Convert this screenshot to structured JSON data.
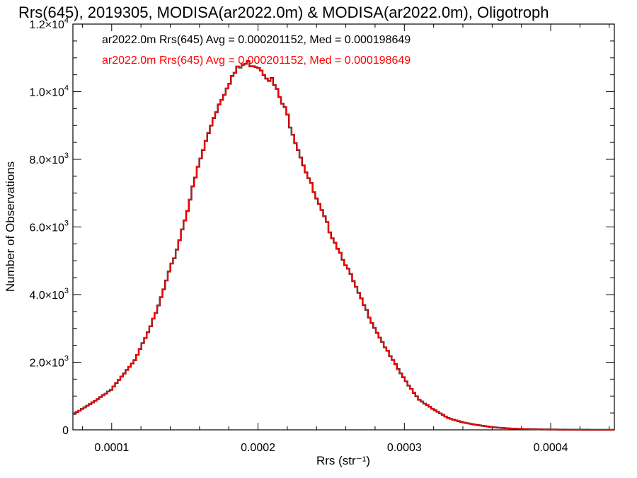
{
  "chart_data": {
    "type": "line",
    "title": "Rrs(645), 2019305, MODISA(ar2022.0m) & MODISA(ar2022.0m), Oligotroph",
    "xlabel": "Rrs (str⁻¹)",
    "ylabel": "Number of Observations",
    "xlim": [
      7.35e-05,
      0.0004435
    ],
    "ylim": [
      0,
      12000
    ],
    "x_ticks": [
      {
        "value": 0.0001,
        "label": "0.0001"
      },
      {
        "value": 0.0002,
        "label": "0.0002"
      },
      {
        "value": 0.0003,
        "label": "0.0003"
      },
      {
        "value": 0.0004,
        "label": "0.0004"
      }
    ],
    "y_ticks": [
      {
        "value": 0,
        "mant": "0",
        "exp": ""
      },
      {
        "value": 2000,
        "mant": "2.0×10",
        "exp": "3"
      },
      {
        "value": 4000,
        "mant": "4.0×10",
        "exp": "3"
      },
      {
        "value": 6000,
        "mant": "6.0×10",
        "exp": "3"
      },
      {
        "value": 8000,
        "mant": "8.0×10",
        "exp": "3"
      },
      {
        "value": 10000,
        "mant": "1.0×10",
        "exp": "4"
      },
      {
        "value": 12000,
        "mant": "1.2×10",
        "exp": "4"
      }
    ],
    "grid": false,
    "legend_position": "top-left",
    "annotations": [
      {
        "text": "ar2022.0m Rrs(645) Avg = 0.000201152, Med = 0.000198649",
        "color": "#000000"
      },
      {
        "text": "ar2022.0m Rrs(645) Avg = 0.000201152, Med = 0.000198649",
        "color": "#ff0000"
      }
    ],
    "series": [
      {
        "color": "#000000",
        "x": [
          7.35e-05,
          8.5e-05,
          0.0001,
          0.000115,
          0.00013,
          0.000145,
          0.00016,
          0.00017,
          0.00018,
          0.000185,
          0.00019,
          0.000195,
          0.0002,
          0.00021,
          0.00022,
          0.00023,
          0.00024,
          0.00025,
          0.00026,
          0.00027,
          0.00028,
          0.00029,
          0.0003,
          0.00031,
          0.00032,
          0.00033,
          0.00034,
          0.00035,
          0.00036,
          0.00037,
          0.00038,
          0.00039,
          0.0004,
          0.00041,
          0.00042,
          0.00043,
          0.0004435
        ],
        "y": [
          450,
          750,
          1200,
          2000,
          3400,
          5400,
          7900,
          9300,
          10300,
          10600,
          10800,
          10850,
          10800,
          10300,
          9300,
          8000,
          6800,
          5800,
          4900,
          3900,
          3000,
          2200,
          1500,
          900,
          600,
          350,
          220,
          140,
          80,
          45,
          25,
          15,
          10,
          5,
          3,
          2,
          1
        ]
      },
      {
        "color": "#ff0000",
        "x": [
          7.35e-05,
          8.5e-05,
          0.0001,
          0.000115,
          0.00013,
          0.000145,
          0.00016,
          0.00017,
          0.00018,
          0.000185,
          0.00019,
          0.000195,
          0.0002,
          0.00021,
          0.00022,
          0.00023,
          0.00024,
          0.00025,
          0.00026,
          0.00027,
          0.00028,
          0.00029,
          0.0003,
          0.00031,
          0.00032,
          0.00033,
          0.00034,
          0.00035,
          0.00036,
          0.00037,
          0.00038,
          0.00039,
          0.0004,
          0.00041,
          0.00042,
          0.00043,
          0.0004435
        ],
        "y": [
          450,
          750,
          1200,
          2000,
          3400,
          5400,
          7900,
          9300,
          10300,
          10600,
          10800,
          10850,
          10800,
          10300,
          9300,
          8000,
          6800,
          5800,
          4900,
          3900,
          3000,
          2200,
          1500,
          900,
          600,
          350,
          220,
          140,
          80,
          45,
          25,
          15,
          10,
          5,
          3,
          2,
          1
        ]
      }
    ]
  }
}
